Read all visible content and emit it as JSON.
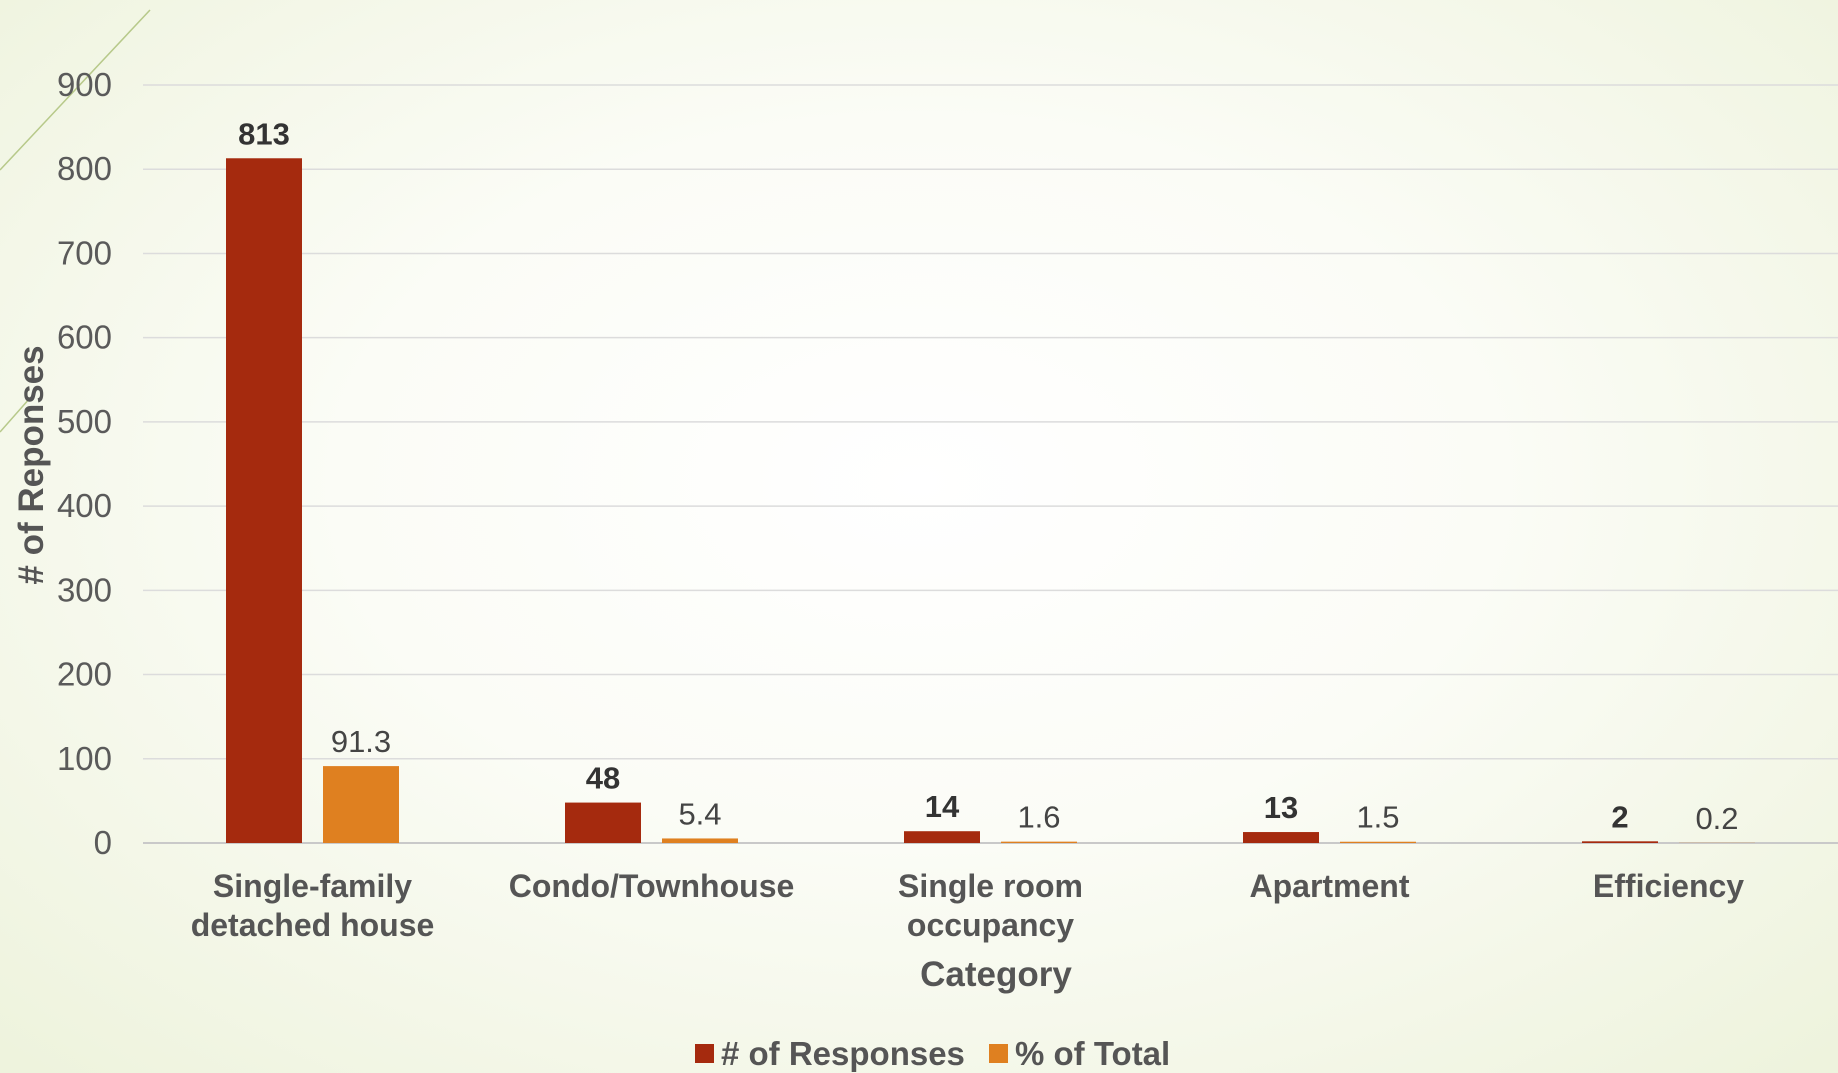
{
  "chart_data": {
    "type": "bar",
    "categories": [
      [
        "Single-family",
        "detached house"
      ],
      [
        "Condo/Townhouse"
      ],
      [
        "Single room",
        "occupancy"
      ],
      [
        "Apartment"
      ],
      [
        "Efficiency"
      ]
    ],
    "series": [
      {
        "name": "# of Responses",
        "color": "#a52a0e",
        "values": [
          813,
          48,
          14,
          13,
          2
        ],
        "labels": [
          "813",
          "48",
          "14",
          "13",
          "2"
        ]
      },
      {
        "name": "% of Total",
        "color": "#df8020",
        "values": [
          91.3,
          5.4,
          1.6,
          1.5,
          0.2
        ],
        "labels": [
          "91.3",
          "5.4",
          "1.6",
          "1.5",
          "0.2"
        ]
      }
    ],
    "xlabel": "Category",
    "ylabel": "# of Reponses",
    "ylim": [
      0,
      900
    ],
    "yticks": [
      "0",
      "100",
      "200",
      "300",
      "400",
      "500",
      "600",
      "700",
      "800",
      "900"
    ],
    "grid": true,
    "legend_position": "bottom"
  }
}
